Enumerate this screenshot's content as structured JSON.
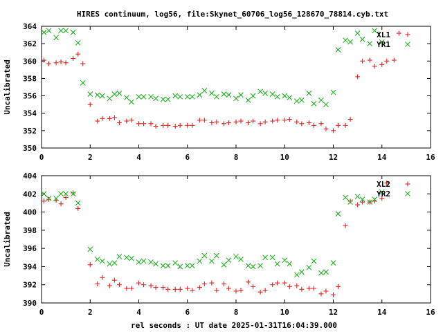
{
  "title": "HIRES continuum, log56, file:Skynet_60706_log56_128670_78814.cyb.txt",
  "xlabel": "rel seconds : UT date 2025-01-31T16:04:39.000",
  "colors": {
    "red": "#e0201e",
    "green": "#1fb21f"
  },
  "chart_data": [
    {
      "type": "scatter",
      "ylabel": "Uncalibrated",
      "xlim": [
        0,
        16
      ],
      "ylim": [
        350,
        364
      ],
      "xticks": [
        0,
        2,
        4,
        6,
        8,
        10,
        12,
        14,
        16
      ],
      "yticks": [
        350,
        352,
        354,
        356,
        358,
        360,
        362,
        364
      ],
      "legend_position": "top-right",
      "series": [
        {
          "name": "XL1",
          "marker": "+",
          "color": "#e0201e",
          "points": [
            [
              0.1,
              360.1
            ],
            [
              0.3,
              359.7
            ],
            [
              0.6,
              359.8
            ],
            [
              0.8,
              359.9
            ],
            [
              1.0,
              359.8
            ],
            [
              1.3,
              360.3
            ],
            [
              1.5,
              360.8
            ],
            [
              1.7,
              359.7
            ],
            [
              2.0,
              355.0
            ],
            [
              2.3,
              353.1
            ],
            [
              2.5,
              353.4
            ],
            [
              2.8,
              353.4
            ],
            [
              3.0,
              353.5
            ],
            [
              3.2,
              352.9
            ],
            [
              3.5,
              353.1
            ],
            [
              3.7,
              353.2
            ],
            [
              4.0,
              352.8
            ],
            [
              4.2,
              352.8
            ],
            [
              4.5,
              352.8
            ],
            [
              4.7,
              352.5
            ],
            [
              5.0,
              352.6
            ],
            [
              5.2,
              352.6
            ],
            [
              5.5,
              352.5
            ],
            [
              5.7,
              352.6
            ],
            [
              6.0,
              352.6
            ],
            [
              6.2,
              352.6
            ],
            [
              6.5,
              353.2
            ],
            [
              6.7,
              353.2
            ],
            [
              7.0,
              352.9
            ],
            [
              7.2,
              353.0
            ],
            [
              7.5,
              352.8
            ],
            [
              7.7,
              352.9
            ],
            [
              8.0,
              353.0
            ],
            [
              8.2,
              353.1
            ],
            [
              8.5,
              352.9
            ],
            [
              8.7,
              353.1
            ],
            [
              9.0,
              352.8
            ],
            [
              9.2,
              353.0
            ],
            [
              9.5,
              353.1
            ],
            [
              9.7,
              353.2
            ],
            [
              10.0,
              353.2
            ],
            [
              10.2,
              353.3
            ],
            [
              10.5,
              353.0
            ],
            [
              10.7,
              352.8
            ],
            [
              11.0,
              352.9
            ],
            [
              11.2,
              352.6
            ],
            [
              11.5,
              352.8
            ],
            [
              11.7,
              352.2
            ],
            [
              12.0,
              352.0
            ],
            [
              12.2,
              352.6
            ],
            [
              12.5,
              352.6
            ],
            [
              12.7,
              353.3
            ],
            [
              13.0,
              358.2
            ],
            [
              13.2,
              360.0
            ],
            [
              13.5,
              360.1
            ],
            [
              13.7,
              359.4
            ],
            [
              14.0,
              359.6
            ],
            [
              14.2,
              360.0
            ],
            [
              14.5,
              360.1
            ],
            [
              14.7,
              363.2
            ]
          ]
        },
        {
          "name": "YR1",
          "marker": "x",
          "color": "#1fb21f",
          "points": [
            [
              0.1,
              363.3
            ],
            [
              0.3,
              363.5
            ],
            [
              0.6,
              362.7
            ],
            [
              0.8,
              363.5
            ],
            [
              1.0,
              363.5
            ],
            [
              1.3,
              363.3
            ],
            [
              1.5,
              362.1
            ],
            [
              1.7,
              357.5
            ],
            [
              2.0,
              356.2
            ],
            [
              2.3,
              356.1
            ],
            [
              2.5,
              356.0
            ],
            [
              2.8,
              355.7
            ],
            [
              3.0,
              356.2
            ],
            [
              3.2,
              356.3
            ],
            [
              3.5,
              355.8
            ],
            [
              3.7,
              355.3
            ],
            [
              4.0,
              355.9
            ],
            [
              4.2,
              355.9
            ],
            [
              4.5,
              355.9
            ],
            [
              4.7,
              355.7
            ],
            [
              5.0,
              355.6
            ],
            [
              5.2,
              355.6
            ],
            [
              5.5,
              356.0
            ],
            [
              5.7,
              355.9
            ],
            [
              6.0,
              355.9
            ],
            [
              6.2,
              355.9
            ],
            [
              6.5,
              356.1
            ],
            [
              6.7,
              356.6
            ],
            [
              7.0,
              356.3
            ],
            [
              7.2,
              355.9
            ],
            [
              7.5,
              356.2
            ],
            [
              7.7,
              356.1
            ],
            [
              8.0,
              355.7
            ],
            [
              8.2,
              356.1
            ],
            [
              8.5,
              355.5
            ],
            [
              8.7,
              356.0
            ],
            [
              9.0,
              356.5
            ],
            [
              9.2,
              356.3
            ],
            [
              9.5,
              356.2
            ],
            [
              9.7,
              355.9
            ],
            [
              10.0,
              356.0
            ],
            [
              10.2,
              355.8
            ],
            [
              10.5,
              355.4
            ],
            [
              10.7,
              355.5
            ],
            [
              11.0,
              356.3
            ],
            [
              11.2,
              355.1
            ],
            [
              11.5,
              355.5
            ],
            [
              11.7,
              355.0
            ],
            [
              12.0,
              356.4
            ],
            [
              12.2,
              361.3
            ],
            [
              12.5,
              362.4
            ],
            [
              12.7,
              362.2
            ],
            [
              13.0,
              363.2
            ],
            [
              13.2,
              362.5
            ],
            [
              13.5,
              362.0
            ],
            [
              13.7,
              363.5
            ],
            [
              14.0,
              362.2
            ]
          ]
        }
      ]
    },
    {
      "type": "scatter",
      "ylabel": "Uncalibrated",
      "xlim": [
        0,
        16
      ],
      "ylim": [
        390,
        404
      ],
      "xticks": [
        0,
        2,
        4,
        6,
        8,
        10,
        12,
        14,
        16
      ],
      "yticks": [
        390,
        392,
        394,
        396,
        398,
        400,
        402,
        404
      ],
      "legend_position": "top-right",
      "series": [
        {
          "name": "XL2",
          "marker": "+",
          "color": "#e0201e",
          "points": [
            [
              0.1,
              401.2
            ],
            [
              0.3,
              401.4
            ],
            [
              0.6,
              401.3
            ],
            [
              0.8,
              400.9
            ],
            [
              1.0,
              401.6
            ],
            [
              1.3,
              402.1
            ],
            [
              1.5,
              400.4
            ],
            [
              2.0,
              394.2
            ],
            [
              2.3,
              392.1
            ],
            [
              2.5,
              392.8
            ],
            [
              2.8,
              391.9
            ],
            [
              3.0,
              392.5
            ],
            [
              3.2,
              392.0
            ],
            [
              3.5,
              391.6
            ],
            [
              3.7,
              391.6
            ],
            [
              4.0,
              392.2
            ],
            [
              4.2,
              392.0
            ],
            [
              4.5,
              391.9
            ],
            [
              4.7,
              391.7
            ],
            [
              5.0,
              391.7
            ],
            [
              5.2,
              391.5
            ],
            [
              5.5,
              391.5
            ],
            [
              5.7,
              391.5
            ],
            [
              6.0,
              391.6
            ],
            [
              6.2,
              391.4
            ],
            [
              6.5,
              391.7
            ],
            [
              6.7,
              392.1
            ],
            [
              7.0,
              392.2
            ],
            [
              7.2,
              391.4
            ],
            [
              7.5,
              392.1
            ],
            [
              7.7,
              391.6
            ],
            [
              8.0,
              391.3
            ],
            [
              8.2,
              391.4
            ],
            [
              8.5,
              392.3
            ],
            [
              8.7,
              391.8
            ],
            [
              9.0,
              391.2
            ],
            [
              9.2,
              391.4
            ],
            [
              9.5,
              392.0
            ],
            [
              9.7,
              392.2
            ],
            [
              10.0,
              392.2
            ],
            [
              10.2,
              391.8
            ],
            [
              10.5,
              391.9
            ],
            [
              10.7,
              391.5
            ],
            [
              11.0,
              391.6
            ],
            [
              11.2,
              391.6
            ],
            [
              11.5,
              391.0
            ],
            [
              11.7,
              391.3
            ],
            [
              12.0,
              390.9
            ],
            [
              12.2,
              391.8
            ],
            [
              12.5,
              398.5
            ],
            [
              12.7,
              401.2
            ],
            [
              13.0,
              400.8
            ],
            [
              13.2,
              401.1
            ],
            [
              13.5,
              401.1
            ],
            [
              13.7,
              401.2
            ],
            [
              14.0,
              401.5
            ],
            [
              14.2,
              403.2
            ]
          ]
        },
        {
          "name": "YR2",
          "marker": "x",
          "color": "#1fb21f",
          "points": [
            [
              0.1,
              402.0
            ],
            [
              0.3,
              401.5
            ],
            [
              0.6,
              401.5
            ],
            [
              0.8,
              402.0
            ],
            [
              1.0,
              402.0
            ],
            [
              1.3,
              402.0
            ],
            [
              1.5,
              401.0
            ],
            [
              2.0,
              395.9
            ],
            [
              2.3,
              394.8
            ],
            [
              2.5,
              394.6
            ],
            [
              2.8,
              394.3
            ],
            [
              3.0,
              394.4
            ],
            [
              3.2,
              395.1
            ],
            [
              3.5,
              395.0
            ],
            [
              3.7,
              394.9
            ],
            [
              4.0,
              394.5
            ],
            [
              4.2,
              394.6
            ],
            [
              4.5,
              394.5
            ],
            [
              4.7,
              394.3
            ],
            [
              5.0,
              394.1
            ],
            [
              5.2,
              394.1
            ],
            [
              5.5,
              394.4
            ],
            [
              5.7,
              394.0
            ],
            [
              6.0,
              394.1
            ],
            [
              6.2,
              394.1
            ],
            [
              6.5,
              394.6
            ],
            [
              6.7,
              395.2
            ],
            [
              7.0,
              394.6
            ],
            [
              7.2,
              395.2
            ],
            [
              7.5,
              394.2
            ],
            [
              7.7,
              394.7
            ],
            [
              8.0,
              395.1
            ],
            [
              8.2,
              394.8
            ],
            [
              8.5,
              394.1
            ],
            [
              8.7,
              394.0
            ],
            [
              9.0,
              394.1
            ],
            [
              9.2,
              395.0
            ],
            [
              9.5,
              395.0
            ],
            [
              9.7,
              394.3
            ],
            [
              10.0,
              394.7
            ],
            [
              10.2,
              394.3
            ],
            [
              10.5,
              393.1
            ],
            [
              10.7,
              393.4
            ],
            [
              11.0,
              393.9
            ],
            [
              11.2,
              394.6
            ],
            [
              11.5,
              393.3
            ],
            [
              11.7,
              393.4
            ],
            [
              12.0,
              394.4
            ],
            [
              12.2,
              399.8
            ],
            [
              12.5,
              401.6
            ],
            [
              12.7,
              401.1
            ],
            [
              13.0,
              401.7
            ],
            [
              13.2,
              401.4
            ],
            [
              13.5,
              401.1
            ],
            [
              13.7,
              401.4
            ],
            [
              14.0,
              402.2
            ]
          ]
        }
      ]
    }
  ]
}
